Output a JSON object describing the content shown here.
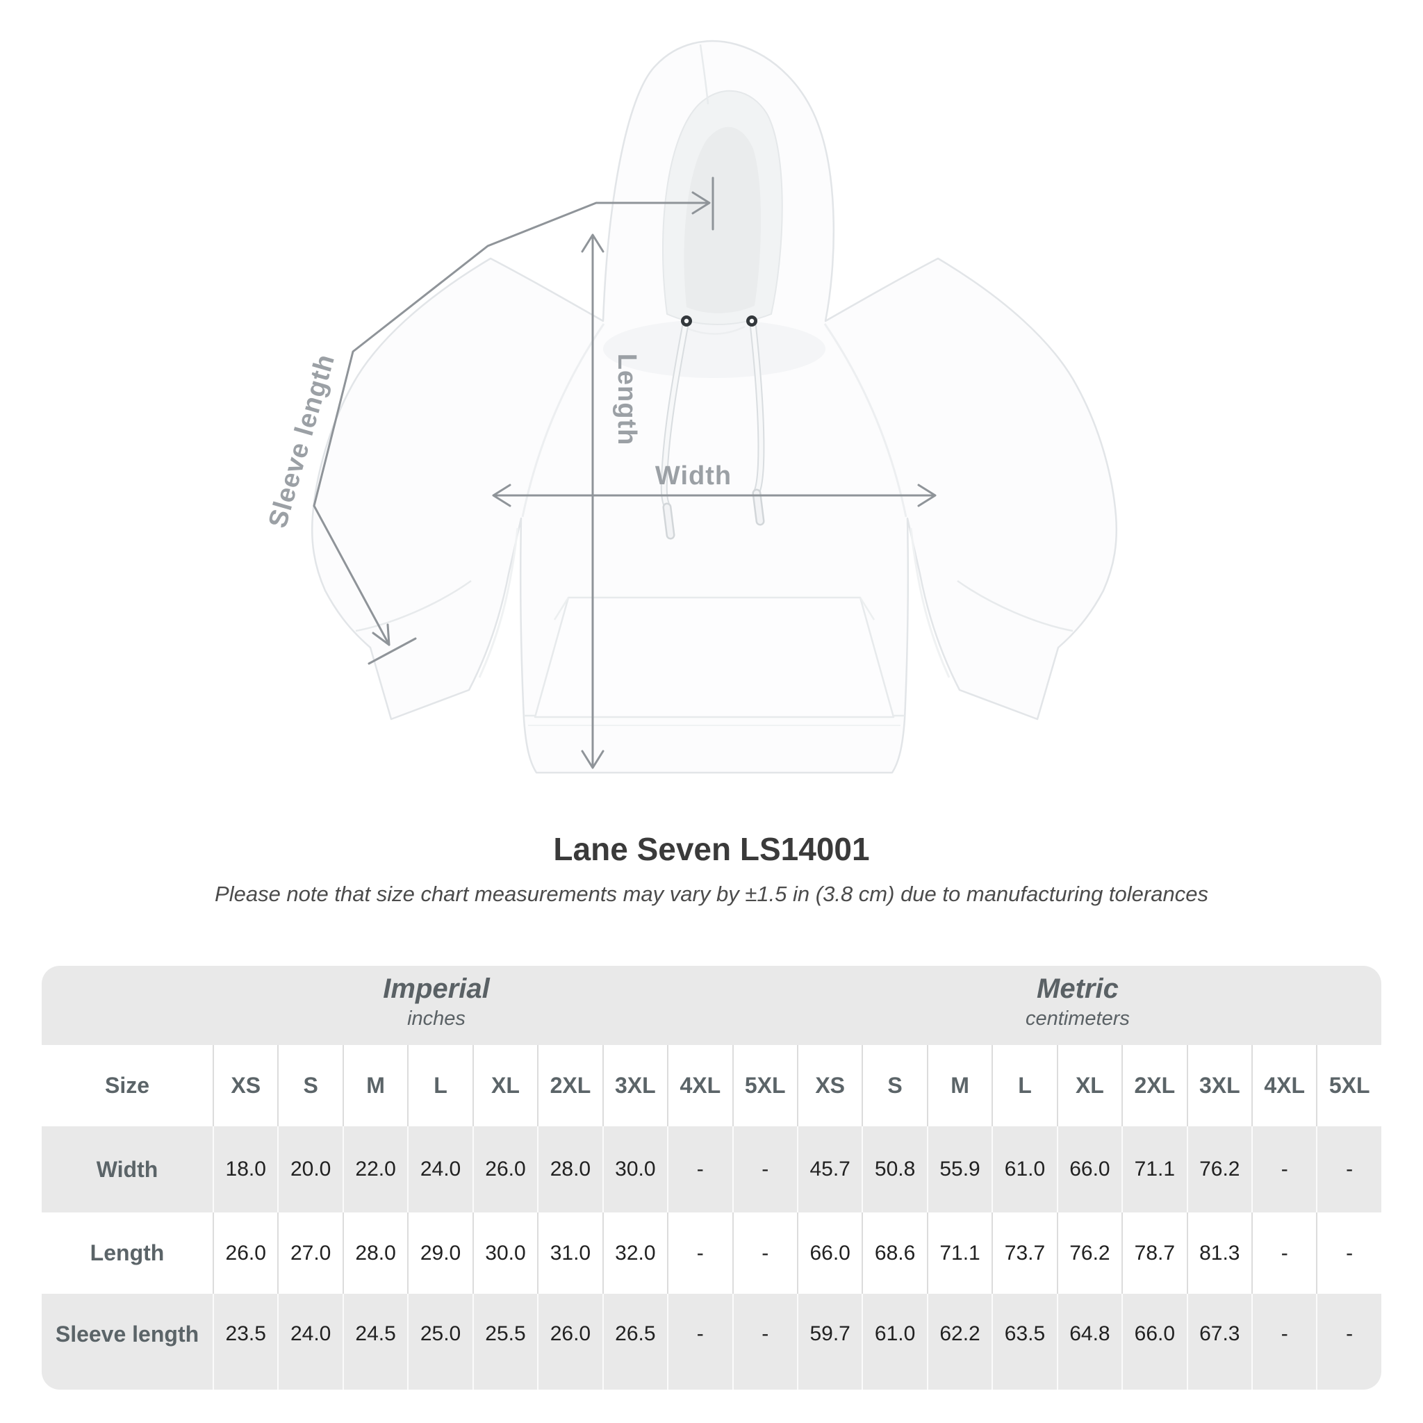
{
  "product": {
    "title": "Lane Seven LS14001",
    "note": "Please note that size chart measurements may vary by ±1.5 in (3.8 cm) due to manufacturing tolerances"
  },
  "diagram": {
    "width_label": "Width",
    "length_label": "Length",
    "sleeve_label": "Sleeve length"
  },
  "table": {
    "size_label": "Size",
    "unit_groups": [
      {
        "name": "Imperial",
        "unit": "inches"
      },
      {
        "name": "Metric",
        "unit": "centimeters"
      }
    ],
    "sizes": [
      "XS",
      "S",
      "M",
      "L",
      "XL",
      "2XL",
      "3XL",
      "4XL",
      "5XL"
    ],
    "rows": [
      {
        "label": "Width",
        "imperial": [
          "18.0",
          "20.0",
          "22.0",
          "24.0",
          "26.0",
          "28.0",
          "30.0",
          "-",
          "-"
        ],
        "metric": [
          "45.7",
          "50.8",
          "55.9",
          "61.0",
          "66.0",
          "71.1",
          "76.2",
          "-",
          "-"
        ]
      },
      {
        "label": "Length",
        "imperial": [
          "26.0",
          "27.0",
          "28.0",
          "29.0",
          "30.0",
          "31.0",
          "32.0",
          "-",
          "-"
        ],
        "metric": [
          "66.0",
          "68.6",
          "71.1",
          "73.7",
          "76.2",
          "78.7",
          "81.3",
          "-",
          "-"
        ]
      },
      {
        "label": "Sleeve length",
        "imperial": [
          "23.5",
          "24.0",
          "24.5",
          "25.0",
          "25.5",
          "26.0",
          "26.5",
          "-",
          "-"
        ],
        "metric": [
          "59.7",
          "61.0",
          "62.2",
          "63.5",
          "64.8",
          "66.0",
          "67.3",
          "-",
          "-"
        ]
      }
    ]
  },
  "colors": {
    "band_gray": "#e9e9e9",
    "separator_on_white": "#dcdcdc",
    "separator_on_gray": "#fbfbfb",
    "header_text": "#5b6468",
    "value_text": "#212121",
    "annotation_line": "#8f9499",
    "annotation_label": "#9ba0a5",
    "title_text": "#3a3a3a"
  }
}
